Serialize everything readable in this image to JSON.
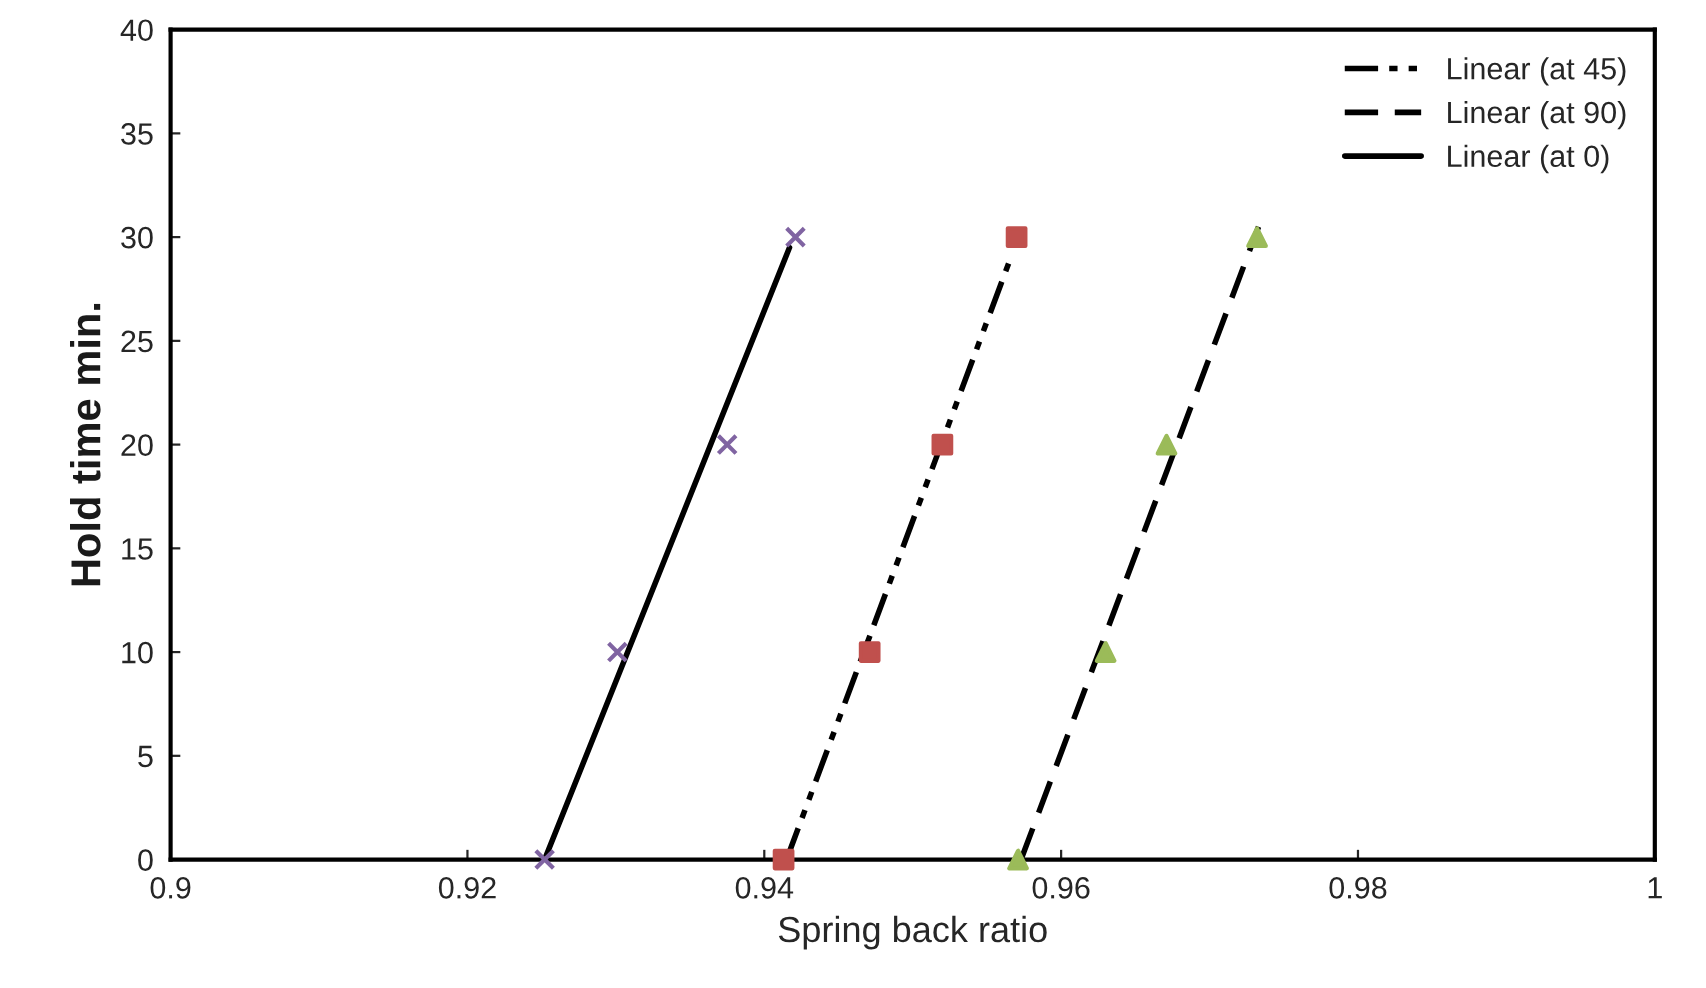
{
  "chart_data": {
    "type": "scatter",
    "xlabel": "Spring back ratio",
    "ylabel": "Hold time min.",
    "xlim": [
      0.9,
      1.0
    ],
    "xticks": [
      0.9,
      0.92,
      0.94,
      0.96,
      0.98,
      1
    ],
    "ylim": [
      0,
      40
    ],
    "yticks": [
      0,
      5,
      10,
      15,
      20,
      25,
      30,
      35,
      40
    ],
    "grid": false,
    "legend": "top right",
    "series": [
      {
        "marker": "cross",
        "color": "#8064a2",
        "x": [
          0.9252,
          0.9301,
          0.9375,
          0.9421
        ],
        "values": [
          0,
          10,
          20,
          30
        ]
      },
      {
        "marker": "square",
        "color": "#c0504d",
        "x": [
          0.9413,
          0.9471,
          0.952,
          0.957
        ],
        "values": [
          0,
          10,
          20,
          30
        ]
      },
      {
        "marker": "triangle",
        "color": "#9bbb59",
        "x": [
          0.9571,
          0.963,
          0.9671,
          0.9732
        ],
        "values": [
          0,
          10,
          20,
          30
        ]
      },
      {
        "type": "line",
        "name": "Linear (at 45)",
        "line_style": "dashdot",
        "color": "#000000",
        "x": [
          0.9415,
          0.9566
        ],
        "values": [
          0,
          29
        ]
      },
      {
        "type": "line",
        "name": "Linear (at 90)",
        "line_style": "dashed",
        "color": "#000000",
        "x": [
          0.9573,
          0.9733
        ],
        "values": [
          0,
          30.5
        ]
      },
      {
        "type": "line",
        "name": "Linear (at 0)",
        "line_style": "solid",
        "color": "#000000",
        "x": [
          0.9252,
          0.9417
        ],
        "values": [
          0,
          29.5
        ]
      }
    ]
  }
}
